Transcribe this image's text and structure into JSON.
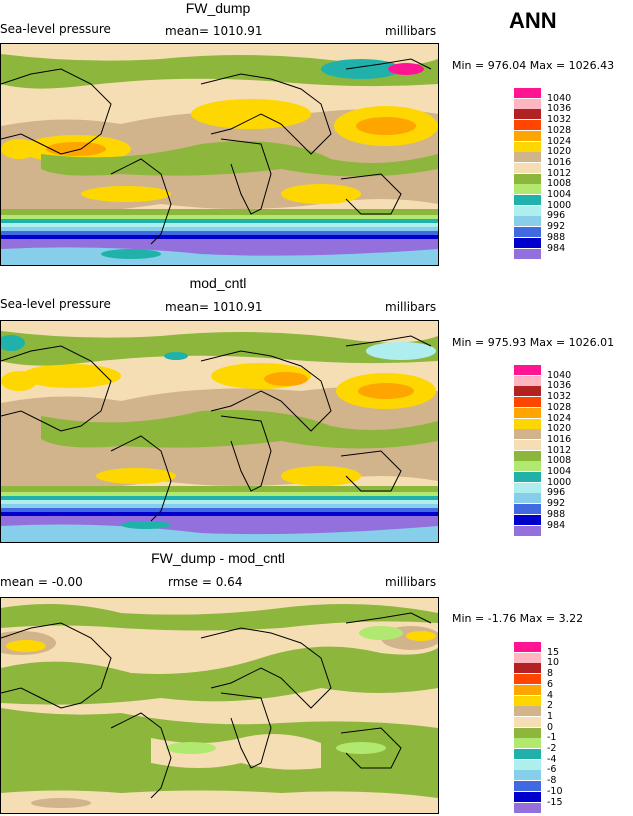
{
  "season": "ANN",
  "panels": [
    {
      "title": "FW_dump",
      "field": "Sea-level pressure",
      "stat": "mean= 1010.91",
      "units": "millibars",
      "minmax": "Min = 976.04 Max = 1026.43",
      "legend": [
        "1040",
        "1036",
        "1032",
        "1028",
        "1024",
        "1020",
        "1016",
        "1012",
        "1008",
        "1004",
        "1000",
        "996",
        "992",
        "988",
        "984"
      ]
    },
    {
      "title": "mod_cntl",
      "field": "Sea-level pressure",
      "stat": "mean= 1010.91",
      "units": "millibars",
      "minmax": "Min = 975.93 Max = 1026.01",
      "legend": [
        "1040",
        "1036",
        "1032",
        "1028",
        "1024",
        "1020",
        "1016",
        "1012",
        "1008",
        "1004",
        "1000",
        "996",
        "992",
        "988",
        "984"
      ]
    },
    {
      "title": "FW_dump - mod_cntl",
      "field": "mean =  -0.00",
      "stat": "rmse =   0.64",
      "units": "millibars",
      "minmax": "Min =  -1.76 Max =   3.22",
      "legend": [
        "15",
        "10",
        "8",
        "6",
        "4",
        "2",
        "1",
        "0",
        "-1",
        "-2",
        "-4",
        "-6",
        "-8",
        "-10",
        "-15"
      ]
    }
  ],
  "colors": [
    "#ff1493",
    "#ffb6c1",
    "#b22222",
    "#ff4500",
    "#ffa500",
    "#ffd700",
    "#d2b48c",
    "#f5deb3",
    "#8db63c",
    "#b0e870",
    "#20b2aa",
    "#afeeee",
    "#87ceeb",
    "#4169e1",
    "#0000cd",
    "#9370db"
  ]
}
